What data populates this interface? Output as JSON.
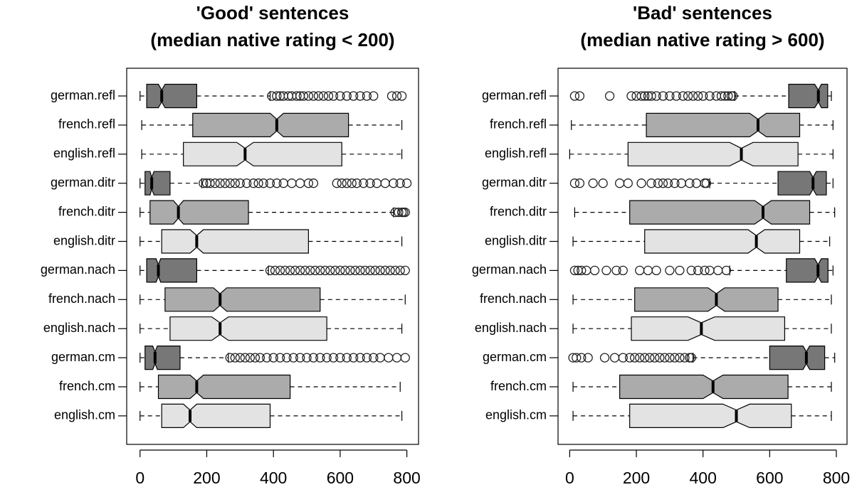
{
  "chart_data": [
    {
      "type": "boxplot",
      "title": "'Good' sentences",
      "subtitle": "(median native rating < 200)",
      "categories": [
        "german.refl",
        "french.refl",
        "english.refl",
        "german.ditr",
        "french.ditr",
        "english.ditr",
        "german.nach",
        "french.nach",
        "english.nach",
        "german.cm",
        "french.cm",
        "english.cm"
      ],
      "xlim": [
        -40,
        835
      ],
      "xticks": [
        0,
        200,
        400,
        600,
        800
      ],
      "boxes": [
        {
          "color": "#777777",
          "whislo": 0,
          "q1": 20,
          "med": 65,
          "q3": 170,
          "whishi": 390,
          "notch": [
            55,
            75
          ],
          "fliers": [
            395,
            410,
            420,
            430,
            445,
            455,
            470,
            480,
            490,
            505,
            520,
            535,
            550,
            565,
            580,
            600,
            620,
            640,
            660,
            680,
            700,
            755,
            770,
            785
          ]
        },
        {
          "color": "#ababab",
          "whislo": 5,
          "q1": 158,
          "med": 410,
          "q3": 625,
          "whishi": 785,
          "notch": [
            390,
            430
          ],
          "fliers": []
        },
        {
          "color": "#e3e3e3",
          "whislo": 5,
          "q1": 130,
          "med": 315,
          "q3": 605,
          "whishi": 785,
          "notch": [
            290,
            340
          ],
          "fliers": []
        },
        {
          "color": "#777777",
          "whislo": 0,
          "q1": 15,
          "med": 35,
          "q3": 90,
          "whishi": 185,
          "notch": [
            30,
            42
          ],
          "fliers": [
            190,
            200,
            210,
            225,
            240,
            255,
            270,
            285,
            300,
            320,
            340,
            355,
            370,
            390,
            410,
            430,
            455,
            480,
            505,
            520,
            590,
            605,
            620,
            635,
            650,
            670,
            690,
            710,
            735,
            760,
            780,
            800
          ]
        },
        {
          "color": "#ababab",
          "whislo": 0,
          "q1": 30,
          "med": 115,
          "q3": 325,
          "whishi": 760,
          "notch": [
            100,
            130
          ],
          "fliers": [
            765,
            775,
            785,
            790,
            795
          ]
        },
        {
          "color": "#e3e3e3",
          "whislo": 0,
          "q1": 65,
          "med": 170,
          "q3": 505,
          "whishi": 785,
          "notch": [
            150,
            190
          ],
          "fliers": []
        },
        {
          "color": "#777777",
          "whislo": 0,
          "q1": 20,
          "med": 55,
          "q3": 170,
          "whishi": 385,
          "notch": [
            48,
            62
          ],
          "fliers": [
            390,
            405,
            420,
            435,
            450,
            465,
            480,
            495,
            510,
            525,
            540,
            555,
            570,
            585,
            600,
            615,
            630,
            645,
            660,
            675,
            690,
            705,
            720,
            735,
            750,
            765,
            780,
            795
          ]
        },
        {
          "color": "#ababab",
          "whislo": 0,
          "q1": 75,
          "med": 240,
          "q3": 540,
          "whishi": 795,
          "notch": [
            220,
            260
          ],
          "fliers": []
        },
        {
          "color": "#e3e3e3",
          "whislo": 0,
          "q1": 90,
          "med": 240,
          "q3": 560,
          "whishi": 785,
          "notch": [
            215,
            265
          ],
          "fliers": []
        },
        {
          "color": "#777777",
          "whislo": 0,
          "q1": 15,
          "med": 45,
          "q3": 120,
          "whishi": 265,
          "notch": [
            38,
            52
          ],
          "fliers": [
            270,
            285,
            300,
            315,
            330,
            345,
            360,
            380,
            400,
            420,
            440,
            460,
            480,
            500,
            520,
            540,
            560,
            580,
            600,
            620,
            640,
            660,
            680,
            700,
            720,
            745,
            770,
            795
          ]
        },
        {
          "color": "#ababab",
          "whislo": 0,
          "q1": 55,
          "med": 170,
          "q3": 450,
          "whishi": 780,
          "notch": [
            150,
            190
          ],
          "fliers": []
        },
        {
          "color": "#e3e3e3",
          "whislo": 0,
          "q1": 65,
          "med": 150,
          "q3": 390,
          "whishi": 785,
          "notch": [
            130,
            170
          ],
          "fliers": []
        }
      ]
    },
    {
      "type": "boxplot",
      "title": "'Bad' sentences",
      "subtitle": "(median native rating > 600)",
      "categories": [
        "german.refl",
        "french.refl",
        "english.refl",
        "german.ditr",
        "french.ditr",
        "english.ditr",
        "german.nach",
        "french.nach",
        "english.nach",
        "german.cm",
        "french.cm",
        "english.cm"
      ],
      "xlim": [
        -35,
        832
      ],
      "xticks": [
        0,
        200,
        400,
        600,
        800
      ],
      "boxes": [
        {
          "color": "#777777",
          "whislo": 495,
          "q1": 657,
          "med": 746,
          "q3": 774,
          "whishi": 785,
          "notch": [
            735,
            755
          ],
          "fliers": [
            15,
            30,
            120,
            185,
            200,
            215,
            225,
            235,
            245,
            260,
            280,
            300,
            320,
            340,
            355,
            370,
            385,
            400,
            420,
            440,
            455,
            465,
            475,
            485,
            490
          ]
        },
        {
          "color": "#ababab",
          "whislo": 5,
          "q1": 230,
          "med": 565,
          "q3": 690,
          "whishi": 790,
          "notch": [
            540,
            590
          ],
          "fliers": []
        },
        {
          "color": "#e3e3e3",
          "whislo": 0,
          "q1": 175,
          "med": 515,
          "q3": 685,
          "whishi": 790,
          "notch": [
            480,
            550
          ],
          "fliers": []
        },
        {
          "color": "#777777",
          "whislo": 420,
          "q1": 625,
          "med": 730,
          "q3": 770,
          "whishi": 790,
          "notch": [
            720,
            740
          ],
          "fliers": [
            15,
            30,
            70,
            100,
            150,
            175,
            215,
            245,
            265,
            280,
            295,
            315,
            335,
            360,
            380,
            405,
            410
          ]
        },
        {
          "color": "#ababab",
          "whislo": 15,
          "q1": 180,
          "med": 580,
          "q3": 720,
          "whishi": 795,
          "notch": [
            555,
            605
          ],
          "fliers": []
        },
        {
          "color": "#e3e3e3",
          "whislo": 10,
          "q1": 225,
          "med": 560,
          "q3": 690,
          "whishi": 780,
          "notch": [
            535,
            585
          ],
          "fliers": []
        },
        {
          "color": "#777777",
          "whislo": 480,
          "q1": 650,
          "med": 745,
          "q3": 775,
          "whishi": 790,
          "notch": [
            735,
            755
          ],
          "fliers": [
            15,
            25,
            35,
            50,
            75,
            110,
            140,
            160,
            210,
            235,
            260,
            300,
            330,
            365,
            385,
            405,
            420,
            445,
            470
          ]
        },
        {
          "color": "#ababab",
          "whislo": 10,
          "q1": 195,
          "med": 440,
          "q3": 625,
          "whishi": 785,
          "notch": [
            415,
            465
          ],
          "fliers": []
        },
        {
          "color": "#e3e3e3",
          "whislo": 10,
          "q1": 185,
          "med": 395,
          "q3": 645,
          "whishi": 785,
          "notch": [
            355,
            435
          ],
          "fliers": []
        },
        {
          "color": "#777777",
          "whislo": 370,
          "q1": 600,
          "med": 710,
          "q3": 765,
          "whishi": 795,
          "notch": [
            700,
            720
          ],
          "fliers": [
            10,
            20,
            35,
            55,
            105,
            135,
            160,
            180,
            195,
            210,
            225,
            240,
            255,
            270,
            285,
            300,
            315,
            330,
            345,
            360,
            365
          ]
        },
        {
          "color": "#ababab",
          "whislo": 10,
          "q1": 150,
          "med": 430,
          "q3": 655,
          "whishi": 785,
          "notch": [
            400,
            460
          ],
          "fliers": []
        },
        {
          "color": "#e3e3e3",
          "whislo": 10,
          "q1": 180,
          "med": 500,
          "q3": 665,
          "whishi": 785,
          "notch": [
            460,
            540
          ],
          "fliers": []
        }
      ]
    }
  ]
}
